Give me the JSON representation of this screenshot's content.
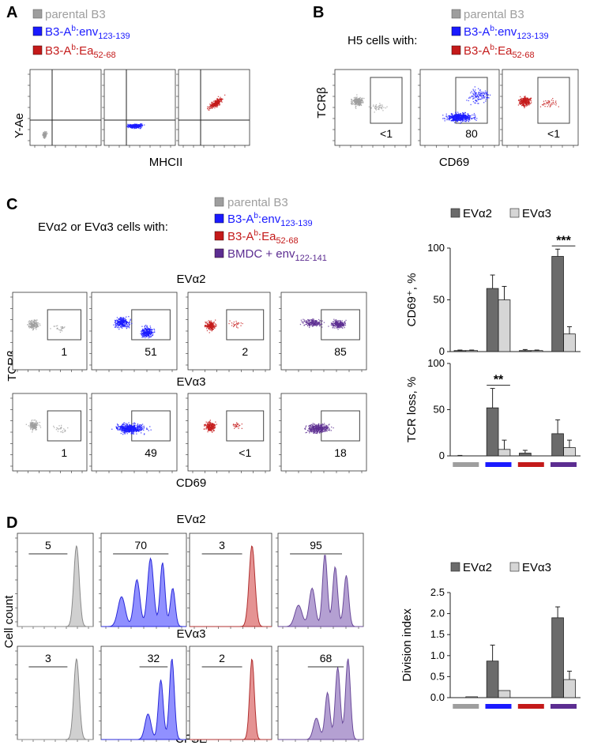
{
  "panel_letters": {
    "a": "A",
    "b": "B",
    "c": "C",
    "d": "D"
  },
  "colors": {
    "parental": "#9e9e9e",
    "env": "#1a1aff",
    "ea": "#c41a1a",
    "bmdc": "#5c2d91",
    "bar_eva2": "#6b6b6b",
    "bar_eva3": "#d6d6d6"
  },
  "legend_ab": [
    {
      "key": "parental",
      "text": "parental B3",
      "sup": "",
      "sub": ""
    },
    {
      "key": "env",
      "text": "B3-A",
      "sup": "b",
      "mid": ":env",
      "sub": "123-139"
    },
    {
      "key": "ea",
      "text": "B3-A",
      "sup": "b",
      "mid": ":Ea",
      "sub": "52-68"
    }
  ],
  "legend_c_extra": {
    "key": "bmdc",
    "text": "BMDC + env",
    "sub": "122-141"
  },
  "panel_a": {
    "ylabel": "Y-Ae",
    "xlabel": "MHCII"
  },
  "panel_b": {
    "prefix": "H5 cells with:",
    "ylabel": "TCRβ",
    "xlabel": "CD69",
    "gate_values": [
      "<1",
      "80",
      "<1"
    ]
  },
  "panel_c": {
    "prefix": "EVα2 or EVα3 cells with:",
    "row_titles": [
      "EVα2",
      "EVα3"
    ],
    "ylabel": "TCRβ",
    "xlabel": "CD69",
    "gate_values_eva2": [
      "1",
      "51",
      "2",
      "85"
    ],
    "gate_values_eva3": [
      "1",
      "49",
      "<1",
      "18"
    ],
    "bar_legend": [
      "EVα2",
      "EVα3"
    ]
  },
  "panel_d": {
    "row_titles": [
      "EVα2",
      "EVα3"
    ],
    "ylabel": "Cell count",
    "xlabel": "CFSE",
    "div_values_eva2": [
      "5",
      "70",
      "3",
      "95"
    ],
    "div_values_eva3": [
      "3",
      "32",
      "2",
      "68"
    ],
    "bar_legend": [
      "EVα2",
      "EVα3"
    ]
  },
  "chart_data": [
    {
      "type": "bar",
      "title": "",
      "ylabel": "CD69⁺, %",
      "ylim": [
        0,
        100
      ],
      "yticks": [
        "0",
        "50",
        "100"
      ],
      "categories": [
        "parental B3",
        "B3-Ab:env123-139",
        "B3-Ab:Ea52-68",
        "BMDC + env122-141"
      ],
      "series": [
        {
          "name": "EVα2",
          "values": [
            1,
            61,
            1,
            92
          ],
          "errors": [
            0.5,
            13,
            1,
            7
          ]
        },
        {
          "name": "EVα3",
          "values": [
            1,
            50,
            1,
            17
          ],
          "errors": [
            0.5,
            13,
            0.5,
            7
          ]
        }
      ],
      "annotations": [
        {
          "category": 3,
          "text": "***"
        }
      ]
    },
    {
      "type": "bar",
      "title": "",
      "ylabel": "TCR loss, %",
      "ylim": [
        0,
        100
      ],
      "yticks": [
        "0",
        "50",
        "100"
      ],
      "categories": [
        "parental B3",
        "B3-Ab:env123-139",
        "B3-Ab:Ea52-68",
        "BMDC + env122-141"
      ],
      "series": [
        {
          "name": "EVα2",
          "values": [
            0,
            52,
            3,
            24
          ],
          "errors": [
            0.5,
            21,
            3,
            15
          ]
        },
        {
          "name": "EVα3",
          "values": [
            0,
            7,
            0,
            9
          ],
          "errors": [
            0,
            10,
            0,
            8
          ]
        }
      ],
      "annotations": [
        {
          "category": 1,
          "text": "**"
        }
      ]
    },
    {
      "type": "bar",
      "title": "",
      "ylabel": "Division index",
      "ylim": [
        0,
        2.5
      ],
      "yticks": [
        "0.0",
        "0.5",
        "1.0",
        "1.5",
        "2.0",
        "2.5"
      ],
      "categories": [
        "parental B3",
        "B3-Ab:env123-139",
        "B3-Ab:Ea52-68",
        "BMDC + env122-141"
      ],
      "series": [
        {
          "name": "EVα2",
          "values": [
            0.0,
            0.87,
            0.0,
            1.9
          ],
          "errors": [
            0,
            0.38,
            0,
            0.26
          ]
        },
        {
          "name": "EVα3",
          "values": [
            0.02,
            0.17,
            0.0,
            0.43
          ],
          "errors": [
            0,
            0,
            0,
            0.2
          ]
        }
      ],
      "annotations": []
    }
  ]
}
